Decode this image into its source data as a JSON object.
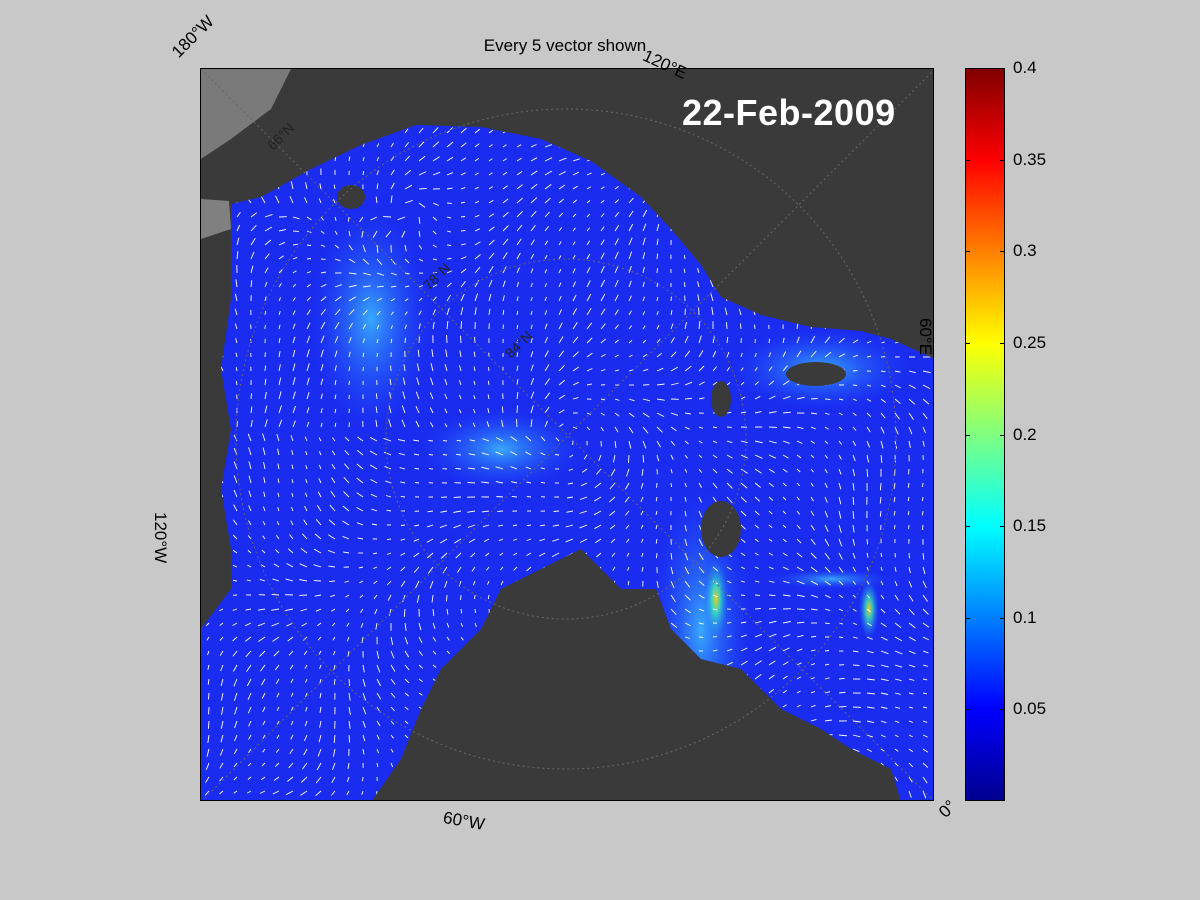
{
  "title": "Every 5 vector shown",
  "date_label": "22-Feb-2009",
  "longitude_labels": {
    "w180": "180°W",
    "e120": "120°E",
    "e60": "60°E",
    "w120": "120°W",
    "w60": "60°W",
    "zero": "0°"
  },
  "latitude_labels": [
    "66°N",
    "78°N",
    "84°N"
  ],
  "colorbar": {
    "ticks": [
      "0.4",
      "0.35",
      "0.3",
      "0.25",
      "0.2",
      "0.15",
      "0.1",
      "0.05"
    ],
    "min": 0,
    "max": 0.4,
    "colormap": "jet"
  },
  "colors": {
    "background": "#c8c8c8",
    "land": "#3a3a3a",
    "land_alt": "#808080",
    "ocean_low": "#1a2cf0",
    "vector": "#ffffff"
  }
}
